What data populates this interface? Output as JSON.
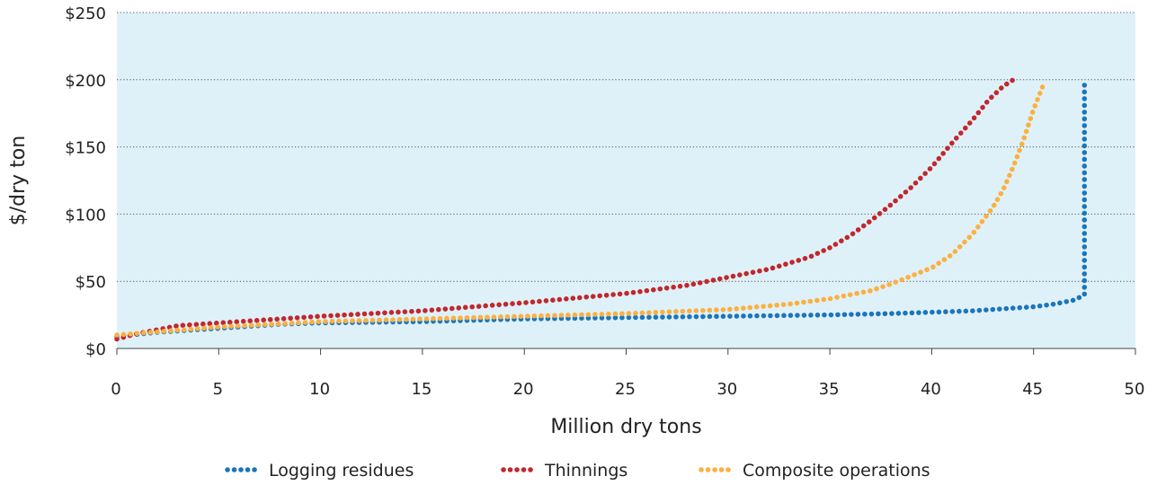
{
  "chart_data": {
    "type": "line",
    "title": "",
    "xlabel": "Million dry tons",
    "ylabel": "$/dry ton",
    "xlim": [
      0,
      50
    ],
    "ylim": [
      0,
      250
    ],
    "x_ticks": [
      0,
      5,
      10,
      15,
      20,
      25,
      30,
      35,
      40,
      45,
      50
    ],
    "x_tick_labels": [
      "0",
      "5",
      "10",
      "15",
      "20",
      "25",
      "30",
      "35",
      "40",
      "45",
      "50"
    ],
    "y_ticks": [
      0,
      50,
      100,
      150,
      200,
      250
    ],
    "y_tick_labels": [
      "$0",
      "$50",
      "$100",
      "$150",
      "$200",
      "$250"
    ],
    "grid": "horizontal dotted",
    "plot_background": "#dff1f8",
    "legend_position": "bottom",
    "series": [
      {
        "name": "Logging residues",
        "color": "#1b75bc",
        "points": [
          [
            0,
            9
          ],
          [
            2,
            12
          ],
          [
            5,
            15
          ],
          [
            8,
            18
          ],
          [
            10,
            19
          ],
          [
            15,
            20
          ],
          [
            20,
            22
          ],
          [
            25,
            23
          ],
          [
            30,
            24
          ],
          [
            35,
            25
          ],
          [
            38,
            26
          ],
          [
            40,
            27
          ],
          [
            42,
            28
          ],
          [
            44,
            30
          ],
          [
            45,
            31
          ],
          [
            46,
            33
          ],
          [
            47,
            36
          ],
          [
            47.5,
            40
          ],
          [
            47.5,
            200
          ]
        ]
      },
      {
        "name": "Thinnings",
        "color": "#c1272d",
        "points": [
          [
            0,
            7
          ],
          [
            1,
            11
          ],
          [
            3,
            17
          ],
          [
            5,
            19
          ],
          [
            10,
            24
          ],
          [
            15,
            28
          ],
          [
            20,
            34
          ],
          [
            25,
            41
          ],
          [
            28,
            47
          ],
          [
            30,
            53
          ],
          [
            32,
            59
          ],
          [
            34,
            68
          ],
          [
            35,
            75
          ],
          [
            36,
            84
          ],
          [
            37,
            95
          ],
          [
            38,
            107
          ],
          [
            39,
            120
          ],
          [
            40,
            135
          ],
          [
            41,
            153
          ],
          [
            42,
            170
          ],
          [
            42.8,
            185
          ],
          [
            43.5,
            195
          ],
          [
            44,
            200
          ]
        ]
      },
      {
        "name": "Composite operations",
        "color": "#fbb040",
        "points": [
          [
            0,
            10
          ],
          [
            5,
            16
          ],
          [
            10,
            20
          ],
          [
            15,
            22
          ],
          [
            20,
            24
          ],
          [
            25,
            26
          ],
          [
            30,
            29
          ],
          [
            33,
            33
          ],
          [
            35,
            37
          ],
          [
            37,
            43
          ],
          [
            38,
            48
          ],
          [
            40,
            60
          ],
          [
            41,
            70
          ],
          [
            42,
            85
          ],
          [
            43,
            105
          ],
          [
            43.5,
            118
          ],
          [
            44,
            135
          ],
          [
            44.5,
            155
          ],
          [
            45,
            178
          ],
          [
            45.5,
            197
          ]
        ]
      }
    ]
  }
}
